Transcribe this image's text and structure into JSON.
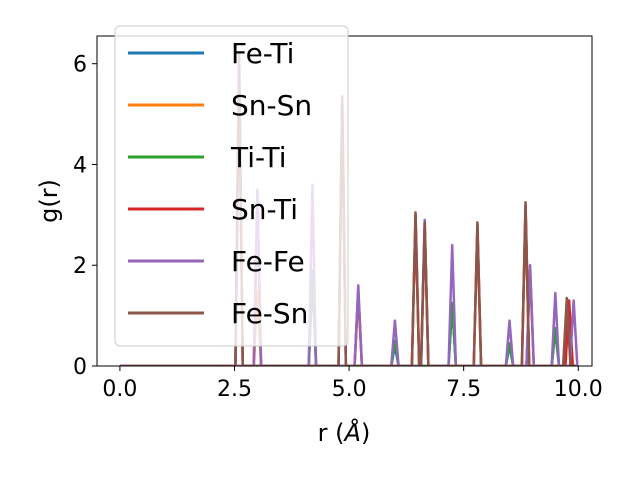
{
  "chart_data": {
    "type": "line",
    "title": "",
    "xlabel_text": "r (",
    "xlabel_unit": "Å",
    "xlabel_close": ")",
    "ylabel": "g(r)",
    "xlim": [
      -0.5,
      10.3
    ],
    "ylim": [
      0,
      6.55
    ],
    "xticks": [
      0.0,
      2.5,
      5.0,
      7.5,
      10.0
    ],
    "xtick_labels": [
      "0.0",
      "2.5",
      "5.0",
      "7.5",
      "10.0"
    ],
    "yticks": [
      0,
      2,
      4,
      6
    ],
    "ytick_labels": [
      "0",
      "2",
      "4",
      "6"
    ],
    "grid": false,
    "legend_position": "upper-left",
    "peak_halfwidth": 0.08,
    "series": [
      {
        "name": "Fe-Ti",
        "color": "#1f77b4",
        "peaks": [
          [
            2.6,
            6.1
          ],
          [
            4.2,
            1.8
          ],
          [
            4.85,
            5.3
          ],
          [
            6.0,
            0.4
          ],
          [
            7.25,
            1.2
          ],
          [
            8.5,
            0.4
          ],
          [
            9.5,
            0.7
          ]
        ]
      },
      {
        "name": "Sn-Sn",
        "color": "#ff7f0e",
        "peaks": [
          [
            3.0,
            1.5
          ],
          [
            5.2,
            1.4
          ],
          [
            6.45,
            2.9
          ],
          [
            6.65,
            2.7
          ],
          [
            7.8,
            2.7
          ],
          [
            8.85,
            3.1
          ],
          [
            9.8,
            1.3
          ]
        ]
      },
      {
        "name": "Ti-Ti",
        "color": "#2ca02c",
        "peaks": [
          [
            4.2,
            1.9
          ],
          [
            6.0,
            0.5
          ],
          [
            7.25,
            1.25
          ],
          [
            8.5,
            0.45
          ],
          [
            9.5,
            0.75
          ]
        ]
      },
      {
        "name": "Sn-Ti",
        "color": "#d62728",
        "peaks": [
          [
            2.6,
            6.0
          ],
          [
            3.0,
            3.4
          ],
          [
            4.85,
            5.2
          ],
          [
            5.2,
            1.5
          ],
          [
            6.45,
            3.0
          ],
          [
            6.65,
            2.8
          ],
          [
            7.8,
            2.8
          ],
          [
            8.85,
            3.2
          ],
          [
            8.95,
            1.9
          ],
          [
            9.8,
            1.3
          ]
        ]
      },
      {
        "name": "Fe-Fe",
        "color": "#9467bd",
        "peaks": [
          [
            3.0,
            3.5
          ],
          [
            4.2,
            3.6
          ],
          [
            5.2,
            1.6
          ],
          [
            6.0,
            0.9
          ],
          [
            6.65,
            2.9
          ],
          [
            7.25,
            2.4
          ],
          [
            8.5,
            0.9
          ],
          [
            8.95,
            2.0
          ],
          [
            9.5,
            1.45
          ],
          [
            9.9,
            1.3
          ]
        ]
      },
      {
        "name": "Fe-Sn",
        "color": "#8c564b",
        "peaks": [
          [
            2.6,
            6.2
          ],
          [
            4.85,
            5.35
          ],
          [
            6.45,
            3.05
          ],
          [
            6.65,
            2.85
          ],
          [
            7.8,
            2.85
          ],
          [
            8.85,
            3.25
          ],
          [
            9.75,
            1.35
          ]
        ]
      }
    ]
  }
}
